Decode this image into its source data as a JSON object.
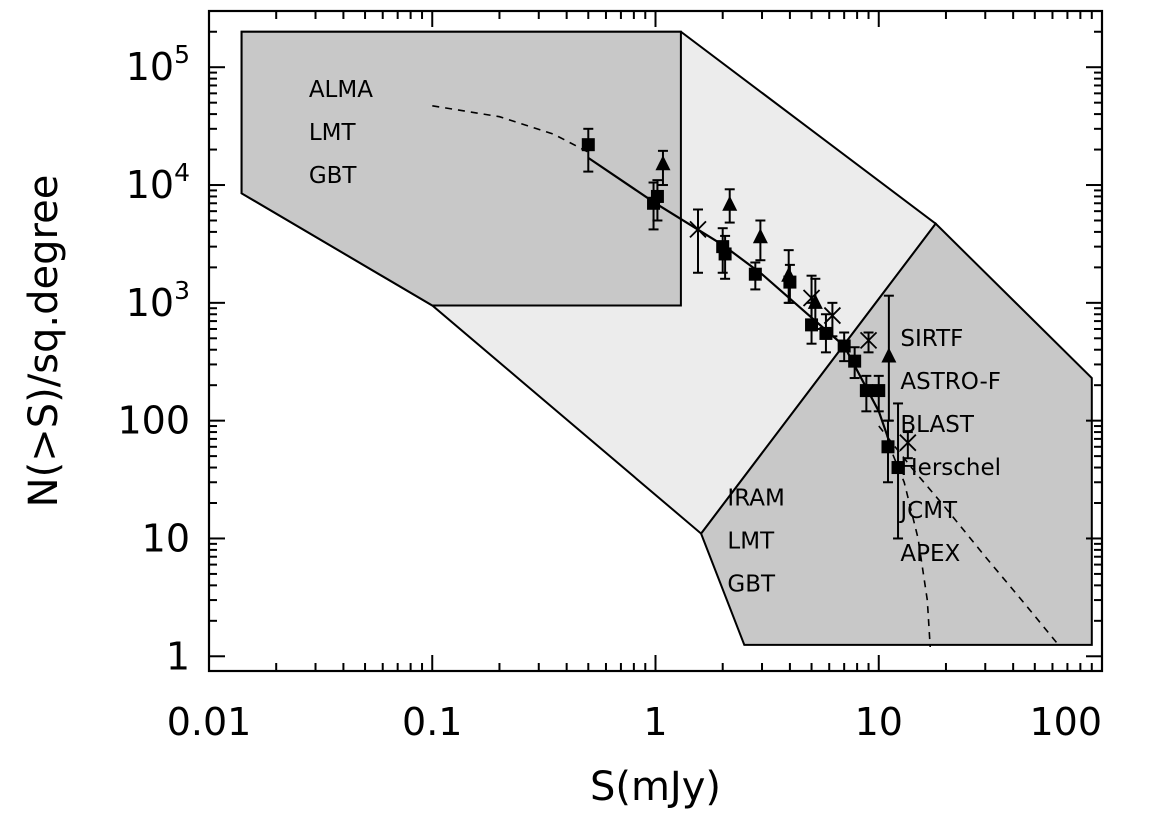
{
  "chart_data": {
    "type": "scatter",
    "xlabel": "S(mJy)",
    "ylabel": "N(>S)/sq.degree",
    "xscale": "log",
    "yscale": "log",
    "xlim": [
      0.01,
      100
    ],
    "ylim": [
      0.75,
      300000
    ],
    "x_ticks": [
      {
        "value": 0.01,
        "label": "0.01"
      },
      {
        "value": 0.1,
        "label": "0.1"
      },
      {
        "value": 1,
        "label": "1"
      },
      {
        "value": 10,
        "label": "10"
      },
      {
        "value": 100,
        "label": "100"
      }
    ],
    "y_ticks": [
      {
        "value": 1,
        "label": "1",
        "base": "",
        "exp": ""
      },
      {
        "value": 10,
        "label": "10",
        "base": "",
        "exp": ""
      },
      {
        "value": 100,
        "label": "100",
        "base": "",
        "exp": ""
      },
      {
        "value": 1000,
        "label": "",
        "base": "10",
        "exp": "3"
      },
      {
        "value": 10000,
        "label": "",
        "base": "10",
        "exp": "4"
      },
      {
        "value": 100000,
        "label": "",
        "base": "10",
        "exp": "5"
      }
    ],
    "regions": [
      {
        "id": "large",
        "fill": "#ececec",
        "points": [
          [
            0.014,
            8500
          ],
          [
            0.1,
            950
          ],
          [
            1.6,
            11
          ],
          [
            18,
            4700
          ],
          [
            1.3,
            200000
          ],
          [
            0.014,
            200000
          ]
        ]
      },
      {
        "id": "upper",
        "fill": "#c8c8c8",
        "labels": [
          "ALMA",
          "LMT",
          "GBT"
        ],
        "points": [
          [
            0.014,
            8500
          ],
          [
            0.014,
            200000
          ],
          [
            1.3,
            200000
          ],
          [
            1.3,
            950
          ],
          [
            0.1,
            950
          ]
        ]
      },
      {
        "id": "lower",
        "fill": "#c8c8c8",
        "labels": [
          "IRAM",
          "LMT",
          "GBT"
        ],
        "points": [
          [
            2.5,
            1.25
          ],
          [
            1.6,
            11
          ],
          [
            18,
            4700
          ],
          [
            90,
            230
          ],
          [
            90,
            1.25
          ]
        ]
      }
    ],
    "right_labels": [
      "SIRTF",
      "ASTRO-F",
      "BLAST",
      "Herschel",
      "JCMT",
      "APEX"
    ],
    "series": [
      {
        "marker": "square",
        "points": [
          {
            "x": 0.5,
            "y": 22000,
            "ylo": 13000,
            "yhi": 30000
          },
          {
            "x": 0.98,
            "y": 7000,
            "ylo": 4200,
            "yhi": 10500
          },
          {
            "x": 1.02,
            "y": 8000,
            "ylo": 5000,
            "yhi": 11000
          },
          {
            "x": 2.0,
            "y": 3000,
            "ylo": 1800,
            "yhi": 4300
          },
          {
            "x": 2.05,
            "y": 2600,
            "ylo": 1600,
            "yhi": 3700
          },
          {
            "x": 2.8,
            "y": 1750,
            "ylo": 1300,
            "yhi": 2200
          },
          {
            "x": 4.0,
            "y": 1500,
            "ylo": 1000,
            "yhi": 2100
          },
          {
            "x": 5.0,
            "y": 650,
            "ylo": 450,
            "yhi": 1000
          },
          {
            "x": 5.8,
            "y": 550,
            "ylo": 380,
            "yhi": 800
          },
          {
            "x": 7.0,
            "y": 430,
            "ylo": 320,
            "yhi": 560
          },
          {
            "x": 7.8,
            "y": 320,
            "ylo": 230,
            "yhi": 420
          },
          {
            "x": 8.8,
            "y": 180,
            "ylo": 120,
            "yhi": 240
          },
          {
            "x": 10.0,
            "y": 180,
            "ylo": 120,
            "yhi": 240
          },
          {
            "x": 11.0,
            "y": 60,
            "ylo": 30,
            "yhi": 100
          },
          {
            "x": 12.2,
            "y": 40,
            "ylo": 10,
            "yhi": 140
          }
        ]
      },
      {
        "marker": "triangle",
        "points": [
          {
            "x": 1.08,
            "y": 15000,
            "ylo": 10000,
            "yhi": 19500
          },
          {
            "x": 2.15,
            "y": 6800,
            "ylo": 4800,
            "yhi": 9200
          },
          {
            "x": 2.95,
            "y": 3600,
            "ylo": 2300,
            "yhi": 5000
          },
          {
            "x": 3.95,
            "y": 1700,
            "ylo": 1000,
            "yhi": 2800
          },
          {
            "x": 5.2,
            "y": 1000,
            "ylo": 600,
            "yhi": 1600
          },
          {
            "x": 11.1,
            "y": 350,
            "ylo": 100,
            "yhi": 1150
          }
        ]
      },
      {
        "marker": "cross",
        "points": [
          {
            "x": 1.55,
            "y": 4200,
            "ylo": 1800,
            "yhi": 6200
          },
          {
            "x": 5.0,
            "y": 1100,
            "ylo": 700,
            "yhi": 1700
          },
          {
            "x": 6.2,
            "y": 780,
            "ylo": 520,
            "yhi": 1000
          },
          {
            "x": 9.0,
            "y": 480,
            "ylo": 380,
            "yhi": 560
          },
          {
            "x": 13.5,
            "y": 65,
            "ylo": 48,
            "yhi": 80
          }
        ]
      }
    ],
    "fit_line": [
      [
        0.5,
        17000
      ],
      [
        1,
        7000
      ],
      [
        2,
        3100
      ],
      [
        3,
        1750
      ],
      [
        5,
        750
      ],
      [
        7,
        430
      ],
      [
        10,
        120
      ],
      [
        11.2,
        65
      ]
    ],
    "dashed_curves": [
      [
        [
          0.1,
          47000
        ],
        [
          0.2,
          38000
        ],
        [
          0.35,
          27000
        ],
        [
          0.5,
          19000
        ]
      ],
      [
        [
          11,
          65
        ],
        [
          13,
          30
        ],
        [
          15,
          10
        ],
        [
          16.5,
          3
        ],
        [
          17,
          1.2
        ]
      ],
      [
        [
          10,
          90
        ],
        [
          14,
          40
        ],
        [
          20,
          18
        ],
        [
          30,
          7
        ],
        [
          45,
          2.8
        ],
        [
          65,
          1.2
        ]
      ]
    ],
    "grid": false
  }
}
